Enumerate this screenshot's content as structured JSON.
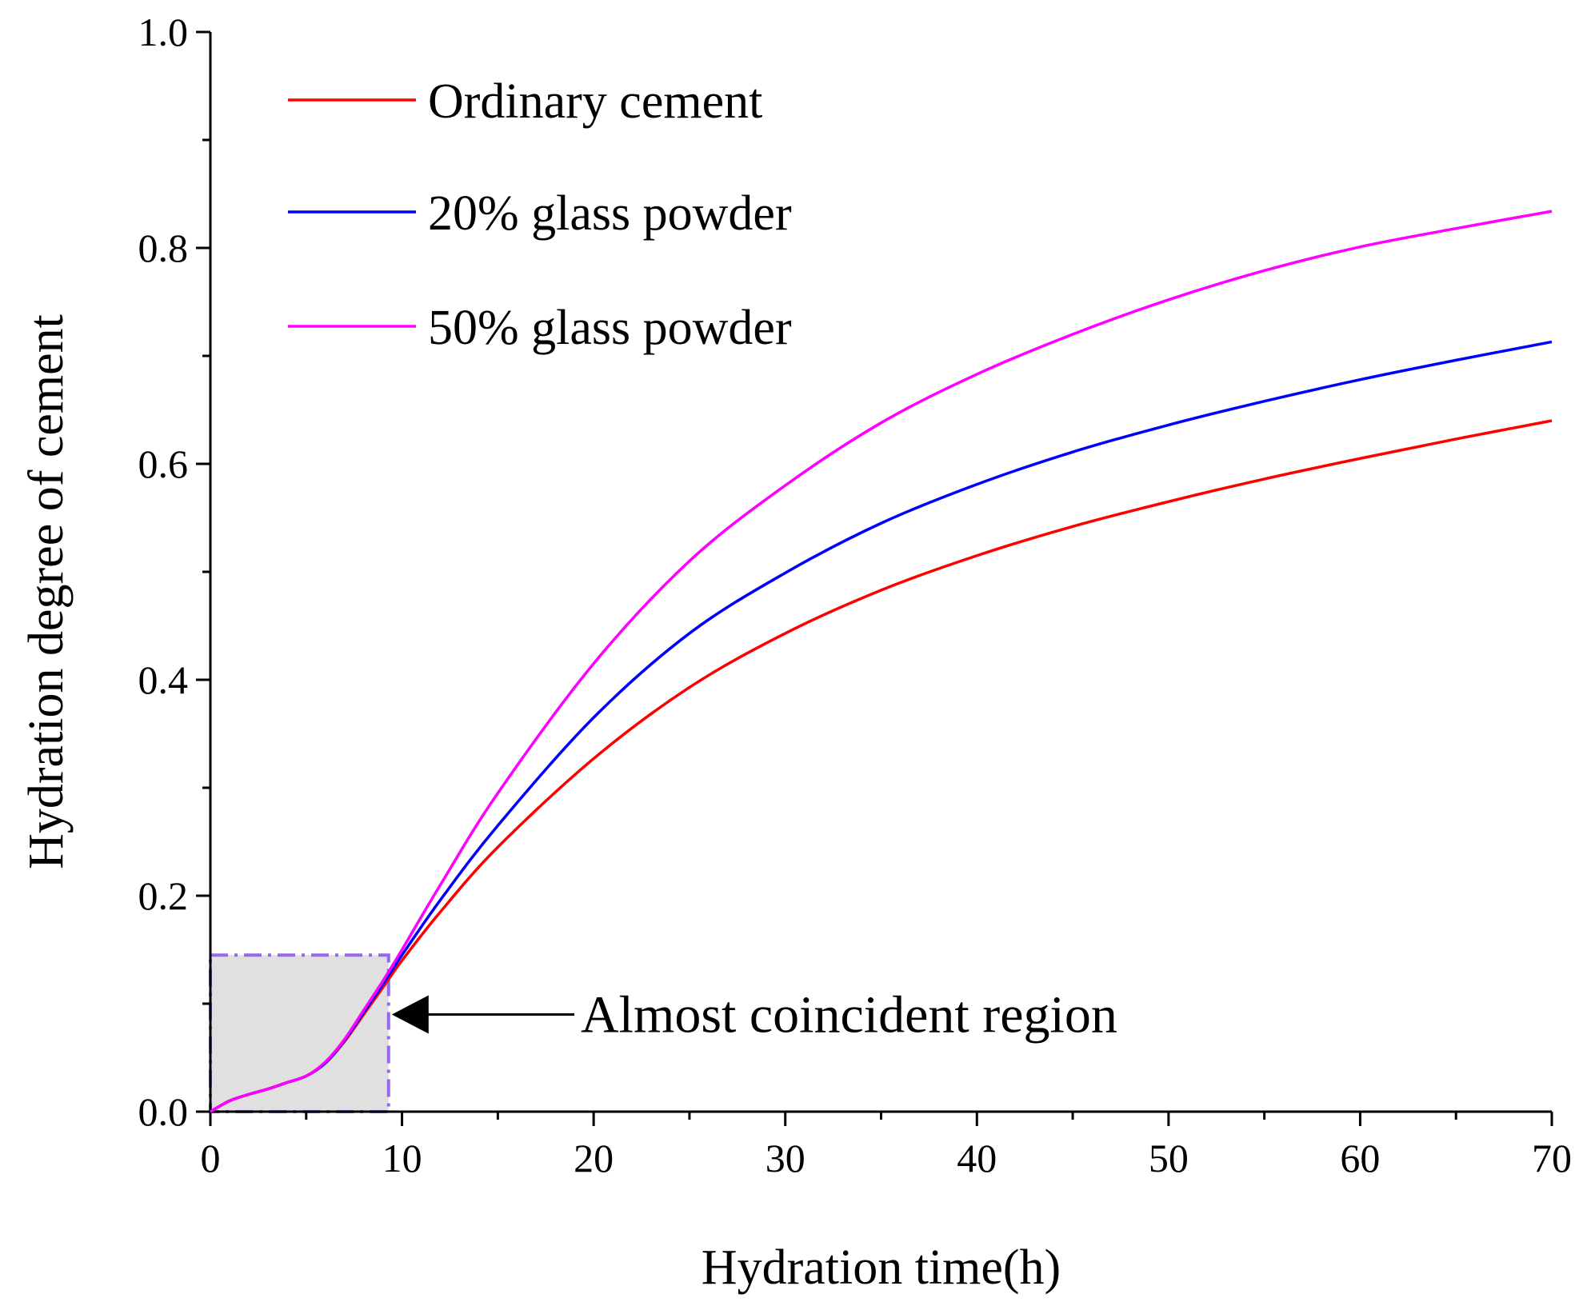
{
  "chart_data": {
    "type": "line",
    "title": "",
    "xlabel": "Hydration time(h)",
    "ylabel": "Hydration degree of cement",
    "xlim": [
      0,
      70
    ],
    "ylim": [
      0,
      1.0
    ],
    "x_ticks": [
      "0",
      "10",
      "20",
      "30",
      "40",
      "50",
      "60",
      "70"
    ],
    "y_ticks": [
      "0.0",
      "0.2",
      "0.4",
      "0.6",
      "0.8",
      "1.0"
    ],
    "grid": false,
    "legend_position": "top-left",
    "x": [
      0,
      1,
      2,
      3,
      4,
      5,
      6,
      7,
      8,
      9,
      10,
      12,
      15,
      20,
      25,
      30,
      35,
      40,
      45,
      50,
      55,
      60,
      65,
      70
    ],
    "series": [
      {
        "name": "Ordinary cement",
        "color": "#ff0000",
        "values": [
          0.0,
          0.01,
          0.016,
          0.021,
          0.027,
          0.033,
          0.045,
          0.065,
          0.09,
          0.115,
          0.14,
          0.185,
          0.245,
          0.327,
          0.393,
          0.443,
          0.483,
          0.515,
          0.542,
          0.565,
          0.586,
          0.605,
          0.623,
          0.64
        ]
      },
      {
        "name": "20% glass powder",
        "color": "#0000ff",
        "values": [
          0.0,
          0.01,
          0.016,
          0.021,
          0.027,
          0.033,
          0.045,
          0.066,
          0.092,
          0.118,
          0.145,
          0.196,
          0.265,
          0.365,
          0.443,
          0.499,
          0.545,
          0.581,
          0.611,
          0.636,
          0.658,
          0.678,
          0.696,
          0.713
        ]
      },
      {
        "name": "50% glass powder",
        "color": "#ff00ff",
        "values": [
          0.0,
          0.01,
          0.016,
          0.021,
          0.027,
          0.033,
          0.046,
          0.067,
          0.094,
          0.121,
          0.15,
          0.21,
          0.295,
          0.415,
          0.51,
          0.58,
          0.638,
          0.683,
          0.72,
          0.752,
          0.779,
          0.801,
          0.818,
          0.834
        ]
      }
    ],
    "annotations": [
      {
        "text": "Almost coincident region",
        "region_x": [
          0,
          9.3
        ],
        "region_y": [
          0,
          0.145
        ],
        "arrow_to": [
          9.3,
          0.09
        ],
        "region_fill": "#e0e0e0",
        "region_border_color": "#9966ee"
      }
    ]
  }
}
